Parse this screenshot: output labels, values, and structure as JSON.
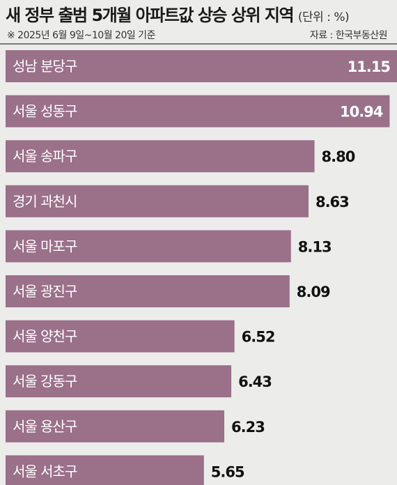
{
  "chart_data": {
    "type": "bar",
    "orientation": "horizontal",
    "title": "새 정부 출범 5개월 아파트값 상승 상위 지역",
    "unit": "(단위 : %)",
    "note": "※ 2025년 6월 9일~10월 20일 기준",
    "source": "자료 : 한국부동산원",
    "categories": [
      "성남 분당구",
      "서울 성동구",
      "서울 송파구",
      "경기 과천시",
      "서울 마포구",
      "서울 광진구",
      "서울 양천구",
      "서울 강동구",
      "서울 용산구",
      "서울 서초구"
    ],
    "values": [
      11.15,
      10.94,
      8.8,
      8.63,
      8.13,
      8.09,
      6.52,
      6.43,
      6.23,
      5.65
    ],
    "value_labels": [
      "11.15",
      "10.94",
      "8.80",
      "8.63",
      "8.13",
      "8.09",
      "6.52",
      "6.43",
      "6.23",
      "5.65"
    ],
    "bar_color": "#9b7089",
    "grid": false,
    "legend": false
  }
}
